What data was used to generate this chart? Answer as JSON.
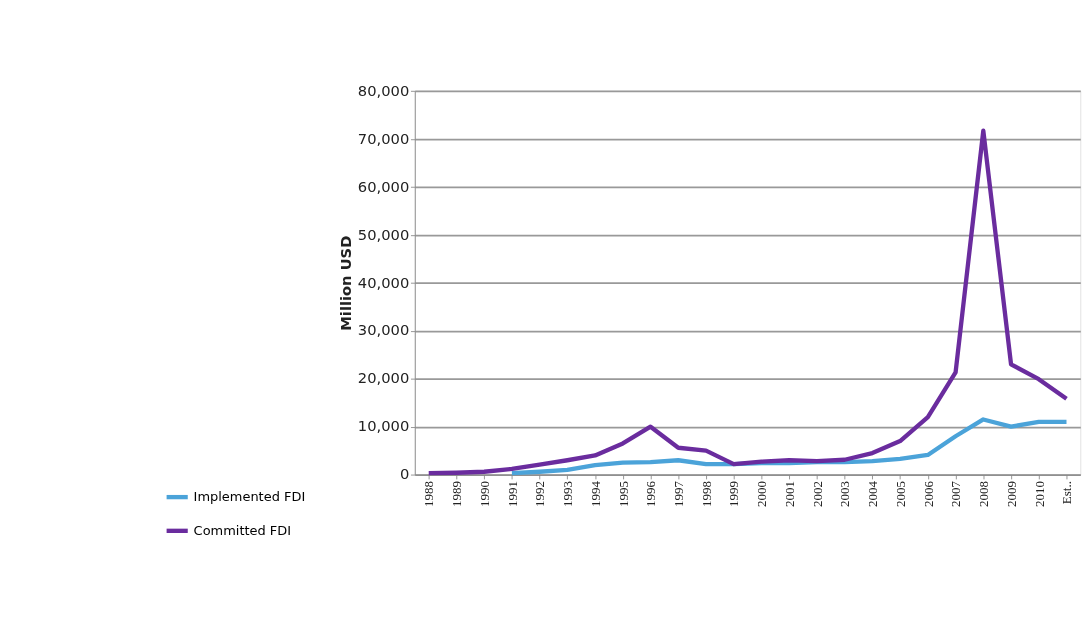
{
  "chart_data": {
    "type": "line",
    "ylabel": "Million USD",
    "categories": [
      "1988",
      "1989",
      "1990",
      "1991",
      "1992",
      "1993",
      "1994",
      "1995",
      "1996",
      "1997",
      "1998",
      "1999",
      "2000",
      "2001",
      "2002",
      "2003",
      "2004",
      "2005",
      "2006",
      "2007",
      "2008",
      "2009",
      "2010",
      "Est.."
    ],
    "series": [
      {
        "name": "Implemented FDI",
        "color": "#4ba3d9",
        "values": [
          null,
          null,
          null,
          300,
          600,
          1000,
          2000,
          2500,
          2600,
          3000,
          2200,
          2200,
          2400,
          2400,
          2600,
          2600,
          2800,
          3300,
          4100,
          8000,
          11500,
          10000,
          11000,
          11000
        ]
      },
      {
        "name": "Committed FDI",
        "color": "#6a2c9e",
        "values": [
          300,
          400,
          600,
          1200,
          2100,
          3000,
          4000,
          6500,
          10000,
          5600,
          5000,
          2200,
          2700,
          3000,
          2800,
          3100,
          4500,
          7000,
          12000,
          21300,
          71700,
          23000,
          19900,
          15800
        ]
      }
    ],
    "ylim": [
      0,
      80000
    ],
    "yticks": [
      {
        "value": 0,
        "label": "0"
      },
      {
        "value": 10000,
        "label": "10,000"
      },
      {
        "value": 20000,
        "label": "20,000"
      },
      {
        "value": 30000,
        "label": "30,000"
      },
      {
        "value": 40000,
        "label": "40,000"
      },
      {
        "value": 50000,
        "label": "50,000"
      },
      {
        "value": 60000,
        "label": "60,000"
      },
      {
        "value": 70000,
        "label": "70,000"
      },
      {
        "value": 80000,
        "label": "80,000"
      }
    ],
    "grid": "y",
    "legend": "bottom left",
    "marker": "none",
    "line_style": "solid"
  }
}
